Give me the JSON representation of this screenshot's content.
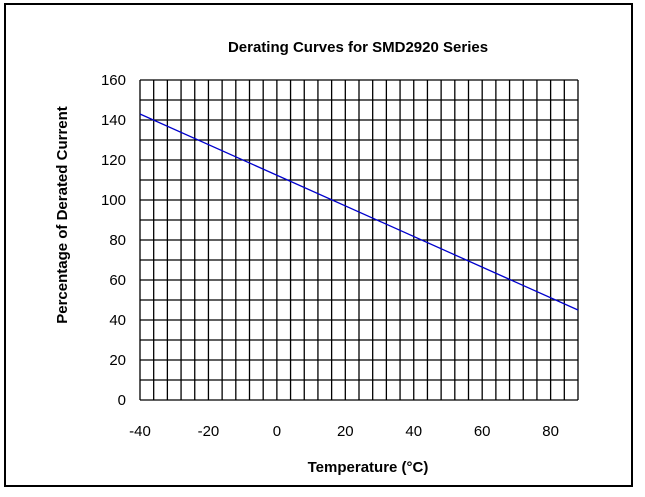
{
  "chart_data": {
    "type": "line",
    "title": "Derating Curves for SMD2920 Series",
    "xlabel": "Temperature (°C)",
    "ylabel": "Percentage of Derated Current",
    "xlim": [
      -40,
      88
    ],
    "ylim": [
      0,
      160
    ],
    "x_ticks": [
      "-40",
      "-20",
      "0",
      "20",
      "40",
      "60",
      "80"
    ],
    "y_ticks": [
      "0",
      "20",
      "40",
      "60",
      "80",
      "100",
      "120",
      "140",
      "160"
    ],
    "grid": true,
    "series": [
      {
        "x": [
          -40,
          88
        ],
        "y": [
          143,
          45
        ]
      }
    ],
    "colors": {
      "line": "#0000cc",
      "grid": "#000000"
    }
  }
}
